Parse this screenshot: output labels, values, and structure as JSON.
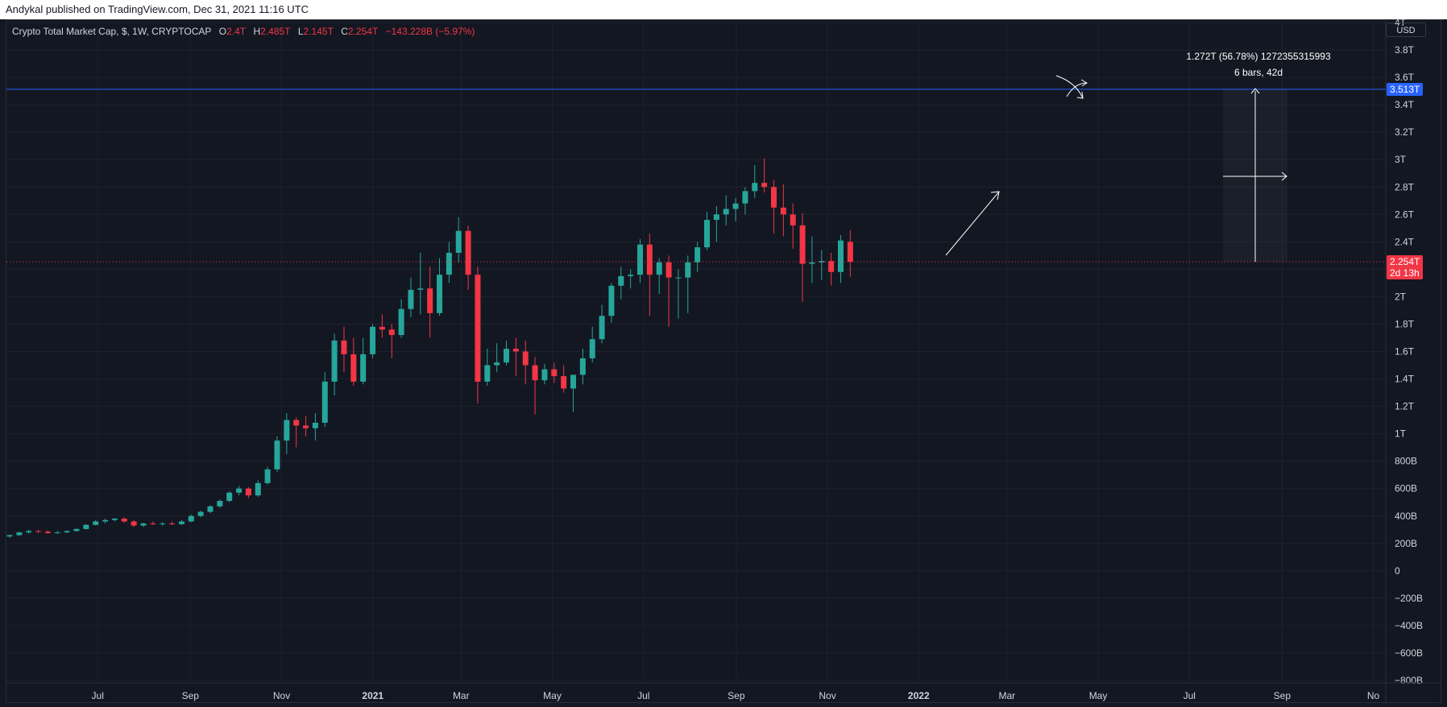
{
  "header": {
    "publisher_text": "Andykal published on TradingView.com, Dec 31, 2021 11:16 UTC"
  },
  "legend": {
    "symbol": "Crypto Total Market Cap, $, 1W, CRYPTOCAP",
    "o_label": "O",
    "o_value": "2.4T",
    "h_label": "H",
    "h_value": "2.485T",
    "l_label": "L",
    "l_value": "2.145T",
    "c_label": "C",
    "c_value": "2.254T",
    "change": "−143.228B (−5.97%)"
  },
  "currency_badge": "USD",
  "price_tags": {
    "line_price": "3.513T",
    "last_price": "2.254T",
    "countdown": "2d 13h"
  },
  "measure": {
    "line1": "1.272T (56.78%) 1272355315993",
    "line2": "6 bars, 42d"
  },
  "colors": {
    "background": "#131722",
    "up": "#26a69a",
    "down": "#f23645",
    "hline": "#2962ff",
    "grid": "#1e222d"
  },
  "chart_data": {
    "type": "candlestick",
    "title": "Crypto Total Market Cap, $, 1W, CRYPTOCAP",
    "interval": "1W",
    "y_unit": "USD",
    "ylim": [
      -800000000000,
      4000000000000
    ],
    "y_ticks": [
      "4T",
      "3.8T",
      "3.6T",
      "3.4T",
      "3.2T",
      "3T",
      "2.8T",
      "2.6T",
      "2.4T",
      "2.2T",
      "2T",
      "1.8T",
      "1.6T",
      "1.4T",
      "1.2T",
      "1T",
      "800B",
      "600B",
      "400B",
      "200B",
      "0",
      "−200B",
      "−400B",
      "−600B",
      "−800B"
    ],
    "x_ticks": [
      {
        "label": "Jul",
        "date": "2020-07-01",
        "bold": false
      },
      {
        "label": "Sep",
        "date": "2020-09-01",
        "bold": false
      },
      {
        "label": "Nov",
        "date": "2020-11-01",
        "bold": false
      },
      {
        "label": "2021",
        "date": "2021-01-01",
        "bold": true
      },
      {
        "label": "Mar",
        "date": "2021-03-01",
        "bold": false
      },
      {
        "label": "May",
        "date": "2021-05-01",
        "bold": false
      },
      {
        "label": "Jul",
        "date": "2021-07-01",
        "bold": false
      },
      {
        "label": "Sep",
        "date": "2021-09-01",
        "bold": false
      },
      {
        "label": "Nov",
        "date": "2021-11-01",
        "bold": false
      },
      {
        "label": "2022",
        "date": "2022-01-01",
        "bold": true
      },
      {
        "label": "Mar",
        "date": "2022-03-01",
        "bold": false
      },
      {
        "label": "May",
        "date": "2022-05-01",
        "bold": false
      },
      {
        "label": "Jul",
        "date": "2022-07-01",
        "bold": false
      },
      {
        "label": "Sep",
        "date": "2022-09-01",
        "bold": false
      },
      {
        "label": "No",
        "date": "2022-11-01",
        "bold": false
      }
    ],
    "x_range": [
      "2020-05-01",
      "2022-11-05"
    ],
    "horizontal_line": 3.513,
    "last_price": 2.254,
    "series_units": "trillions USD",
    "ohlc": [
      [
        0.25,
        0.265,
        0.24,
        0.26
      ],
      [
        0.26,
        0.285,
        0.255,
        0.28
      ],
      [
        0.28,
        0.3,
        0.27,
        0.29
      ],
      [
        0.29,
        0.3,
        0.275,
        0.285
      ],
      [
        0.285,
        0.295,
        0.27,
        0.275
      ],
      [
        0.275,
        0.29,
        0.27,
        0.28
      ],
      [
        0.28,
        0.295,
        0.275,
        0.29
      ],
      [
        0.29,
        0.31,
        0.285,
        0.305
      ],
      [
        0.305,
        0.34,
        0.3,
        0.335
      ],
      [
        0.335,
        0.37,
        0.33,
        0.36
      ],
      [
        0.36,
        0.38,
        0.345,
        0.37
      ],
      [
        0.37,
        0.385,
        0.36,
        0.38
      ],
      [
        0.38,
        0.39,
        0.35,
        0.36
      ],
      [
        0.36,
        0.37,
        0.32,
        0.33
      ],
      [
        0.33,
        0.35,
        0.32,
        0.345
      ],
      [
        0.345,
        0.36,
        0.335,
        0.34
      ],
      [
        0.34,
        0.355,
        0.33,
        0.345
      ],
      [
        0.345,
        0.36,
        0.335,
        0.34
      ],
      [
        0.34,
        0.37,
        0.335,
        0.36
      ],
      [
        0.36,
        0.41,
        0.355,
        0.4
      ],
      [
        0.4,
        0.44,
        0.39,
        0.43
      ],
      [
        0.43,
        0.48,
        0.42,
        0.47
      ],
      [
        0.47,
        0.52,
        0.46,
        0.51
      ],
      [
        0.51,
        0.58,
        0.5,
        0.57
      ],
      [
        0.57,
        0.62,
        0.55,
        0.6
      ],
      [
        0.6,
        0.61,
        0.53,
        0.55
      ],
      [
        0.55,
        0.66,
        0.54,
        0.64
      ],
      [
        0.64,
        0.76,
        0.63,
        0.74
      ],
      [
        0.74,
        0.98,
        0.72,
        0.95
      ],
      [
        0.95,
        1.15,
        0.85,
        1.1
      ],
      [
        1.1,
        1.12,
        0.9,
        1.06
      ],
      [
        1.06,
        1.13,
        0.98,
        1.04
      ],
      [
        1.04,
        1.15,
        0.95,
        1.08
      ],
      [
        1.08,
        1.45,
        1.05,
        1.38
      ],
      [
        1.38,
        1.73,
        1.28,
        1.68
      ],
      [
        1.68,
        1.78,
        1.45,
        1.58
      ],
      [
        1.58,
        1.7,
        1.35,
        1.38
      ],
      [
        1.38,
        1.7,
        1.36,
        1.58
      ],
      [
        1.58,
        1.8,
        1.55,
        1.78
      ],
      [
        1.78,
        1.87,
        1.7,
        1.76
      ],
      [
        1.76,
        1.8,
        1.55,
        1.72
      ],
      [
        1.72,
        1.98,
        1.7,
        1.91
      ],
      [
        1.91,
        2.14,
        1.85,
        2.05
      ],
      [
        2.05,
        2.32,
        1.87,
        2.06
      ],
      [
        2.06,
        2.22,
        1.7,
        1.88
      ],
      [
        1.88,
        2.28,
        1.86,
        2.16
      ],
      [
        2.16,
        2.4,
        2.1,
        2.32
      ],
      [
        2.32,
        2.58,
        2.25,
        2.48
      ],
      [
        2.48,
        2.52,
        2.05,
        2.16
      ],
      [
        2.16,
        2.22,
        1.22,
        1.38
      ],
      [
        1.38,
        1.62,
        1.35,
        1.5
      ],
      [
        1.5,
        1.66,
        1.45,
        1.52
      ],
      [
        1.52,
        1.68,
        1.5,
        1.62
      ],
      [
        1.62,
        1.7,
        1.42,
        1.6
      ],
      [
        1.6,
        1.68,
        1.36,
        1.5
      ],
      [
        1.5,
        1.56,
        1.14,
        1.39
      ],
      [
        1.39,
        1.51,
        1.36,
        1.47
      ],
      [
        1.47,
        1.52,
        1.37,
        1.42
      ],
      [
        1.42,
        1.5,
        1.3,
        1.33
      ],
      [
        1.33,
        1.4,
        1.16,
        1.43
      ],
      [
        1.43,
        1.62,
        1.36,
        1.55
      ],
      [
        1.55,
        1.78,
        1.52,
        1.69
      ],
      [
        1.69,
        1.94,
        1.66,
        1.86
      ],
      [
        1.86,
        2.1,
        1.81,
        2.08
      ],
      [
        2.08,
        2.22,
        1.98,
        2.15
      ],
      [
        2.15,
        2.2,
        2.06,
        2.16
      ],
      [
        2.16,
        2.42,
        2.1,
        2.38
      ],
      [
        2.38,
        2.46,
        1.86,
        2.16
      ],
      [
        2.16,
        2.28,
        2.02,
        2.25
      ],
      [
        2.25,
        2.3,
        1.78,
        2.14
      ],
      [
        2.14,
        2.2,
        1.84,
        2.14
      ],
      [
        2.14,
        2.3,
        1.88,
        2.25
      ],
      [
        2.25,
        2.4,
        2.18,
        2.36
      ],
      [
        2.36,
        2.62,
        2.34,
        2.56
      ],
      [
        2.56,
        2.66,
        2.4,
        2.6
      ],
      [
        2.6,
        2.74,
        2.52,
        2.64
      ],
      [
        2.64,
        2.72,
        2.55,
        2.68
      ],
      [
        2.68,
        2.8,
        2.6,
        2.77
      ],
      [
        2.77,
        2.96,
        2.72,
        2.83
      ],
      [
        2.83,
        3.01,
        2.76,
        2.8
      ],
      [
        2.8,
        2.85,
        2.46,
        2.65
      ],
      [
        2.65,
        2.82,
        2.44,
        2.6
      ],
      [
        2.6,
        2.68,
        2.35,
        2.52
      ],
      [
        2.52,
        2.61,
        1.96,
        2.24
      ],
      [
        2.24,
        2.44,
        2.1,
        2.25
      ],
      [
        2.25,
        2.34,
        2.12,
        2.26
      ],
      [
        2.26,
        2.32,
        2.08,
        2.18
      ],
      [
        2.18,
        2.45,
        2.1,
        2.41
      ],
      [
        2.4,
        2.485,
        2.145,
        2.254
      ]
    ]
  }
}
